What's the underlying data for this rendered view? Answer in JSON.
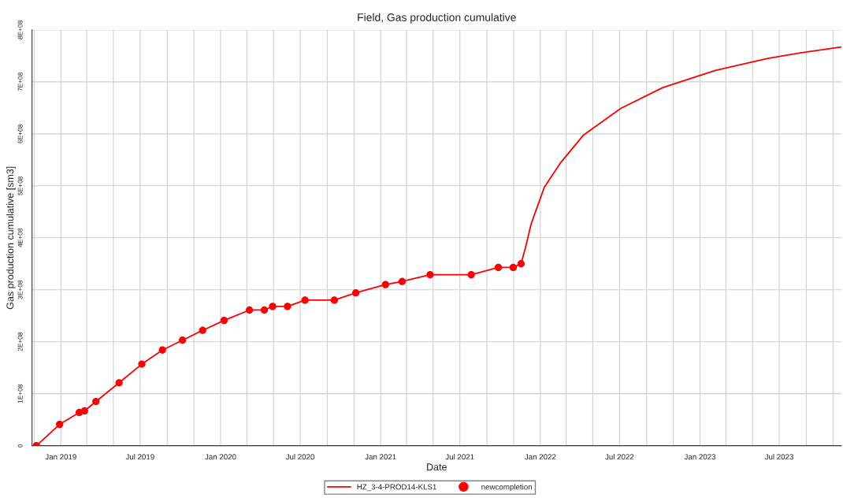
{
  "chart_data": {
    "type": "line",
    "title": "Field, Gas production cumulative",
    "xlabel": "Date",
    "ylabel": "Gas production cumulative [sm3]",
    "xlim": [
      "2018-10-27",
      "2023-11-20"
    ],
    "xticks": [
      {
        "value": "2018-11-01",
        "label": null
      },
      {
        "value": "2019-01-01",
        "label": "Jan 2019"
      },
      {
        "value": "2019-03-01",
        "label": null
      },
      {
        "value": "2019-05-01",
        "label": null
      },
      {
        "value": "2019-07-01",
        "label": "Jul 2019"
      },
      {
        "value": "2019-09-01",
        "label": null
      },
      {
        "value": "2019-11-01",
        "label": null
      },
      {
        "value": "2020-01-01",
        "label": "Jan 2020"
      },
      {
        "value": "2020-03-01",
        "label": null
      },
      {
        "value": "2020-05-01",
        "label": null
      },
      {
        "value": "2020-07-01",
        "label": "Jul 2020"
      },
      {
        "value": "2020-09-01",
        "label": null
      },
      {
        "value": "2020-11-01",
        "label": null
      },
      {
        "value": "2021-01-01",
        "label": "Jan 2021"
      },
      {
        "value": "2021-03-01",
        "label": null
      },
      {
        "value": "2021-05-01",
        "label": null
      },
      {
        "value": "2021-07-01",
        "label": "Jul 2021"
      },
      {
        "value": "2021-09-01",
        "label": null
      },
      {
        "value": "2021-11-01",
        "label": null
      },
      {
        "value": "2022-01-01",
        "label": "Jan 2022"
      },
      {
        "value": "2022-03-01",
        "label": null
      },
      {
        "value": "2022-05-01",
        "label": null
      },
      {
        "value": "2022-07-01",
        "label": "Jul 2022"
      },
      {
        "value": "2022-09-01",
        "label": null
      },
      {
        "value": "2022-11-01",
        "label": null
      },
      {
        "value": "2023-01-01",
        "label": "Jan 2023"
      },
      {
        "value": "2023-03-01",
        "label": null
      },
      {
        "value": "2023-05-01",
        "label": null
      },
      {
        "value": "2023-07-01",
        "label": "Jul 2023"
      },
      {
        "value": "2023-09-01",
        "label": null
      },
      {
        "value": "2023-11-01",
        "label": null
      }
    ],
    "ylim": [
      0,
      800000000
    ],
    "yticks": [
      0,
      {
        "value": 100000000,
        "label": "1E+08"
      },
      {
        "value": 200000000,
        "label": "2E+08"
      },
      {
        "value": 300000000,
        "label": "3E+08"
      },
      {
        "value": 400000000,
        "label": "4E+08"
      },
      {
        "value": 500000000,
        "label": "5E+08"
      },
      {
        "value": 600000000,
        "label": "6E+08"
      },
      {
        "value": 700000000,
        "label": "7E+08"
      },
      {
        "value": 800000000,
        "label": "8E+08"
      }
    ],
    "grid": true,
    "legend": "bottom",
    "series": [
      {
        "name": "HZ_3-4-PROD14-KLS1",
        "color": "#ff0000",
        "line_style": "solid",
        "x": [
          "2018-11-06",
          "2018-12-29",
          "2019-02-12",
          "2019-02-24",
          "2019-03-22",
          "2019-05-14",
          "2019-07-05",
          "2019-08-21",
          "2019-10-06",
          "2019-11-21",
          "2020-01-09",
          "2020-03-07",
          "2020-04-10",
          "2020-04-29",
          "2020-06-02",
          "2020-07-12",
          "2020-09-17",
          "2020-11-05",
          "2021-01-12",
          "2021-02-19",
          "2021-04-24",
          "2021-07-27",
          "2021-09-27",
          "2021-10-31",
          "2021-11-18",
          "2021-11-28",
          "2021-12-11",
          "2021-12-26",
          "2022-01-10",
          "2022-02-15",
          "2022-04-10",
          "2022-07-04",
          "2022-10-08",
          "2023-02-05",
          "2023-06-05",
          "2023-08-21",
          "2023-11-20"
        ],
        "values": [
          0,
          41000000,
          64000000,
          67000000,
          85000000,
          121000000,
          157000000,
          184000000,
          203000000,
          222000000,
          241000000,
          261000000,
          261000000,
          268000000,
          268000000,
          280000000,
          280000000,
          294000000,
          310000000,
          316000000,
          329000000,
          329000000,
          343000000,
          343000000,
          350000000,
          381000000,
          427000000,
          462000000,
          497000000,
          543000000,
          598000000,
          649000000,
          689000000,
          722000000,
          745000000,
          756000000,
          767000000
        ]
      },
      {
        "name": "newcompletion",
        "type": "scatter",
        "color": "#ff0000",
        "marker": "circle",
        "x": [
          "2018-11-06",
          "2018-12-29",
          "2019-02-12",
          "2019-02-24",
          "2019-03-22",
          "2019-05-14",
          "2019-07-05",
          "2019-08-21",
          "2019-10-06",
          "2019-11-21",
          "2020-01-09",
          "2020-03-07",
          "2020-04-10",
          "2020-04-29",
          "2020-06-02",
          "2020-07-12",
          "2020-09-17",
          "2020-11-05",
          "2021-01-12",
          "2021-02-19",
          "2021-04-24",
          "2021-07-27",
          "2021-09-27",
          "2021-10-31",
          "2021-11-18"
        ],
        "values": [
          0,
          41000000,
          64000000,
          67000000,
          85000000,
          121000000,
          157000000,
          184000000,
          203000000,
          222000000,
          241000000,
          261000000,
          261000000,
          268000000,
          268000000,
          280000000,
          280000000,
          294000000,
          310000000,
          316000000,
          329000000,
          329000000,
          343000000,
          343000000,
          350000000
        ]
      }
    ]
  }
}
